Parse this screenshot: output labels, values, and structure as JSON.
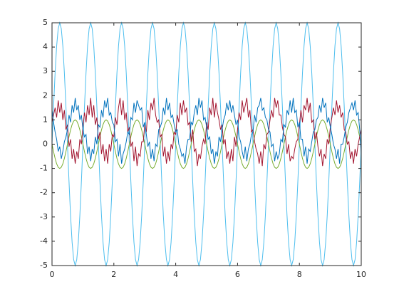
{
  "chart_data": {
    "type": "line",
    "x": [
      0,
      0.05,
      0.1,
      0.15,
      0.2,
      0.25,
      0.3,
      0.35,
      0.4,
      0.45,
      0.5,
      0.55,
      0.6,
      0.65,
      0.7,
      0.75,
      0.8,
      0.85,
      0.9,
      0.95,
      1,
      1.05,
      1.1,
      1.15,
      1.2,
      1.25,
      1.3,
      1.35,
      1.4,
      1.45,
      1.5,
      1.55,
      1.6,
      1.65,
      1.7,
      1.75,
      1.8,
      1.85,
      1.9,
      1.95,
      2,
      2.05,
      2.1,
      2.15,
      2.2,
      2.25,
      2.3,
      2.35,
      2.4,
      2.45,
      2.5,
      2.55,
      2.6,
      2.65,
      2.7,
      2.75,
      2.8,
      2.85,
      2.9,
      2.95,
      3,
      3.05,
      3.1,
      3.15,
      3.2,
      3.25,
      3.3,
      3.35,
      3.4,
      3.45,
      3.5,
      3.55,
      3.6,
      3.65,
      3.7,
      3.75,
      3.8,
      3.85,
      3.9,
      3.95,
      4,
      4.05,
      4.1,
      4.15,
      4.2,
      4.25,
      4.3,
      4.35,
      4.4,
      4.45,
      4.5,
      4.55,
      4.6,
      4.65,
      4.7,
      4.75,
      4.8,
      4.85,
      4.9,
      4.95,
      5,
      5.05,
      5.1,
      5.15,
      5.2,
      5.25,
      5.3,
      5.35,
      5.4,
      5.45,
      5.5,
      5.55,
      5.6,
      5.65,
      5.7,
      5.75,
      5.8,
      5.85,
      5.9,
      5.95,
      6,
      6.05,
      6.1,
      6.15,
      6.2,
      6.25,
      6.3,
      6.35,
      6.4,
      6.45,
      6.5,
      6.55,
      6.6,
      6.65,
      6.7,
      6.75,
      6.8,
      6.85,
      6.9,
      6.95,
      7,
      7.05,
      7.1,
      7.15,
      7.2,
      7.25,
      7.3,
      7.35,
      7.4,
      7.45,
      7.5,
      7.55,
      7.6,
      7.65,
      7.7,
      7.75,
      7.8,
      7.85,
      7.9,
      7.95,
      8,
      8.05,
      8.1,
      8.15,
      8.2,
      8.25,
      8.3,
      8.35,
      8.4,
      8.45,
      8.5,
      8.55,
      8.6,
      8.65,
      8.7,
      8.75,
      8.8,
      8.85,
      8.9,
      8.95,
      9,
      9.05,
      9.1,
      9.15,
      9.2,
      9.25,
      9.3,
      9.35,
      9.4,
      9.45,
      9.5,
      9.55,
      9.6,
      9.65,
      9.7,
      9.75,
      9.8,
      9.85,
      9.9,
      9.95,
      10
    ],
    "series": [
      {
        "color": "#4DBEEE",
        "values": [
          0,
          1.545,
          2.939,
          4.045,
          4.755,
          5,
          4.755,
          4.045,
          2.939,
          1.545,
          0,
          -1.545,
          -2.939,
          -4.045,
          -4.755,
          -5,
          -4.755,
          -4.045,
          -2.939,
          -1.545,
          0,
          1.545,
          2.939,
          4.045,
          4.755,
          5,
          4.755,
          4.045,
          2.939,
          1.545,
          0,
          -1.545,
          -2.939,
          -4.045,
          -4.755,
          -5,
          -4.755,
          -4.045,
          -2.939,
          -1.545,
          0,
          1.545,
          2.939,
          4.045,
          4.755,
          5,
          4.755,
          4.045,
          2.939,
          1.545,
          0,
          -1.545,
          -2.939,
          -4.045,
          -4.755,
          -5,
          -4.755,
          -4.045,
          -2.939,
          -1.545,
          0,
          1.545,
          2.939,
          4.045,
          4.755,
          5,
          4.755,
          4.045,
          2.939,
          1.545,
          0,
          -1.545,
          -2.939,
          -4.045,
          -4.755,
          -5,
          -4.755,
          -4.045,
          -2.939,
          -1.545,
          0,
          1.545,
          2.939,
          4.045,
          4.755,
          5,
          4.755,
          4.045,
          2.939,
          1.545,
          0,
          -1.545,
          -2.939,
          -4.045,
          -4.755,
          -5,
          -4.755,
          -4.045,
          -2.939,
          -1.545,
          0,
          1.545,
          2.939,
          4.045,
          4.755,
          5,
          4.755,
          4.045,
          2.939,
          1.545,
          0,
          -1.545,
          -2.939,
          -4.045,
          -4.755,
          -5,
          -4.755,
          -4.045,
          -2.939,
          -1.545,
          0,
          1.545,
          2.939,
          4.045,
          4.755,
          5,
          4.755,
          4.045,
          2.939,
          1.545,
          0,
          -1.545,
          -2.939,
          -4.045,
          -4.755,
          -5,
          -4.755,
          -4.045,
          -2.939,
          -1.545,
          0,
          1.545,
          2.939,
          4.045,
          4.755,
          5,
          4.755,
          4.045,
          2.939,
          1.545,
          0,
          -1.545,
          -2.939,
          -4.045,
          -4.755,
          -5,
          -4.755,
          -4.045,
          -2.939,
          -1.545,
          0,
          1.545,
          2.939,
          4.045,
          4.755,
          5,
          4.755,
          4.045,
          2.939,
          1.545,
          0,
          -1.545,
          -2.939,
          -4.045,
          -4.755,
          -5,
          -4.755,
          -4.045,
          -2.939,
          -1.545,
          0,
          1.545,
          2.939,
          4.045,
          4.755,
          5,
          4.755,
          4.045,
          2.939,
          1.545,
          0,
          -1.545,
          -2.939,
          -4.045,
          -4.755,
          -5,
          -4.755,
          -4.045,
          -2.939,
          -1.545,
          0
        ]
      },
      {
        "color": "#77AC30",
        "values": [
          0,
          -0.309,
          -0.588,
          -0.809,
          -0.951,
          -1,
          -0.951,
          -0.809,
          -0.588,
          -0.309,
          0,
          0.309,
          0.588,
          0.809,
          0.951,
          1,
          0.951,
          0.809,
          0.588,
          0.309,
          0,
          -0.309,
          -0.588,
          -0.809,
          -0.951,
          -1,
          -0.951,
          -0.809,
          -0.588,
          -0.309,
          0,
          0.309,
          0.588,
          0.809,
          0.951,
          1,
          0.951,
          0.809,
          0.588,
          0.309,
          0,
          -0.309,
          -0.588,
          -0.809,
          -0.951,
          -1,
          -0.951,
          -0.809,
          -0.588,
          -0.309,
          0,
          0.309,
          0.588,
          0.809,
          0.951,
          1,
          0.951,
          0.809,
          0.588,
          0.309,
          0,
          -0.309,
          -0.588,
          -0.809,
          -0.951,
          -1,
          -0.951,
          -0.809,
          -0.588,
          -0.309,
          0,
          0.309,
          0.588,
          0.809,
          0.951,
          1,
          0.951,
          0.809,
          0.588,
          0.309,
          0,
          -0.309,
          -0.588,
          -0.809,
          -0.951,
          -1,
          -0.951,
          -0.809,
          -0.588,
          -0.309,
          0,
          0.309,
          0.588,
          0.809,
          0.951,
          1,
          0.951,
          0.809,
          0.588,
          0.309,
          0,
          -0.309,
          -0.588,
          -0.809,
          -0.951,
          -1,
          -0.951,
          -0.809,
          -0.588,
          -0.309,
          0,
          0.309,
          0.588,
          0.809,
          0.951,
          1,
          0.951,
          0.809,
          0.588,
          0.309,
          0,
          -0.309,
          -0.588,
          -0.809,
          -0.951,
          -1,
          -0.951,
          -0.809,
          -0.588,
          -0.309,
          0,
          0.309,
          0.588,
          0.809,
          0.951,
          1,
          0.951,
          0.809,
          0.588,
          0.309,
          0,
          -0.309,
          -0.588,
          -0.809,
          -0.951,
          -1,
          -0.951,
          -0.809,
          -0.588,
          -0.309,
          0,
          0.309,
          0.588,
          0.809,
          0.951,
          1,
          0.951,
          0.809,
          0.588,
          0.309,
          0,
          -0.309,
          -0.588,
          -0.809,
          -0.951,
          -1,
          -0.951,
          -0.809,
          -0.588,
          -0.309,
          0,
          0.309,
          0.588,
          0.809,
          0.951,
          1,
          0.951,
          0.809,
          0.588,
          0.309,
          0,
          -0.309,
          -0.588,
          -0.809,
          -0.951,
          -1,
          -0.951,
          -0.809,
          -0.588,
          -0.309,
          0,
          0.309,
          0.588,
          0.809,
          0.951,
          1,
          0.951,
          0.809,
          0.588,
          0.309,
          0
        ]
      },
      {
        "color": "#A2142F",
        "values": [
          0.9,
          1.2,
          1.5,
          1.1,
          1.8,
          1.3,
          1.7,
          1.0,
          1.4,
          0.6,
          0.8,
          -0.1,
          0.2,
          -0.6,
          -0.2,
          -0.8,
          -0.3,
          -0.6,
          0.2,
          0.0,
          0.7,
          1.3,
          0.9,
          1.6,
          1.2,
          1.9,
          1.1,
          1.6,
          0.8,
          1.1,
          0.2,
          0.5,
          -0.4,
          0.0,
          -0.7,
          -0.2,
          -0.8,
          0.0,
          -0.3,
          0.4,
          0.3,
          1.1,
          0.8,
          1.5,
          1.9,
          1.2,
          1.8,
          1.0,
          1.3,
          0.5,
          0.7,
          -0.1,
          0.1,
          -0.7,
          -0.1,
          -0.9,
          -0.4,
          -0.5,
          0.1,
          0.1,
          0.8,
          0.5,
          1.4,
          1.0,
          1.7,
          1.4,
          1.9,
          1.2,
          0.9,
          1.0,
          0.3,
          0.4,
          -0.5,
          -0.1,
          -0.8,
          -0.3,
          -0.7,
          0.0,
          -0.2,
          0.5,
          0.4,
          1.2,
          0.9,
          1.7,
          1.2,
          1.8,
          1.3,
          1.5,
          0.8,
          0.9,
          0.1,
          0.6,
          -0.3,
          -0.2,
          -0.9,
          -0.4,
          -0.6,
          -0.1,
          0.2,
          0.0,
          0.9,
          0.6,
          1.5,
          1.2,
          1.9,
          1.1,
          1.7,
          1.3,
          1.0,
          0.6,
          0.8,
          0.0,
          0.2,
          -0.6,
          -0.3,
          -0.8,
          -0.2,
          -0.7,
          0.3,
          -0.1,
          0.6,
          1.3,
          1.0,
          1.8,
          1.3,
          1.6,
          1.9,
          1.1,
          1.4,
          0.5,
          0.6,
          0.1,
          -0.2,
          -0.4,
          -0.8,
          -0.3,
          -0.9,
          0.0,
          -0.2,
          0.4,
          0.5,
          1.0,
          1.4,
          1.1,
          1.9,
          1.5,
          1.8,
          1.2,
          1.2,
          0.7,
          0.4,
          0.3,
          -0.4,
          0.0,
          -0.7,
          -0.5,
          -0.6,
          -0.2,
          0.1,
          0.2,
          0.8,
          1.4,
          0.9,
          1.6,
          1.4,
          1.9,
          1.3,
          1.7,
          0.9,
          1.0,
          0.2,
          0.5,
          -0.1,
          -0.5,
          -0.2,
          -0.9,
          -0.4,
          -0.6,
          0.2,
          0.0,
          0.7,
          1.1,
          1.5,
          1.2,
          1.8,
          1.3,
          1.6,
          1.1,
          1.3,
          0.6,
          0.5,
          0.0,
          0.1,
          -0.6,
          -0.3,
          -0.8,
          -0.2,
          -0.5,
          0.0,
          0.3,
          0.6
        ]
      },
      {
        "color": "#0072BD",
        "values": [
          1.4,
          0.9,
          0.5,
          0.2,
          -0.3,
          -0.1,
          -0.6,
          -0.3,
          0.1,
          0.3,
          0.6,
          1.2,
          0.9,
          1.6,
          1.3,
          1.9,
          1.4,
          1.6,
          1.0,
          1.2,
          0.6,
          0.3,
          0.4,
          -0.4,
          -0.1,
          -0.7,
          -0.2,
          -0.4,
          0.3,
          0.0,
          0.8,
          0.7,
          1.4,
          1.1,
          1.8,
          1.5,
          1.9,
          1.2,
          1.3,
          0.9,
          0.8,
          0.1,
          0.2,
          -0.5,
          0.0,
          -0.8,
          -0.4,
          -0.2,
          0.1,
          0.5,
          0.4,
          1.1,
          1.0,
          1.7,
          1.3,
          1.8,
          1.6,
          1.4,
          1.5,
          0.7,
          0.9,
          0.4,
          -0.1,
          0.1,
          -0.6,
          -0.2,
          -0.7,
          0.0,
          -0.1,
          0.6,
          0.7,
          0.9,
          1.5,
          1.2,
          1.9,
          1.4,
          1.7,
          1.1,
          1.2,
          0.8,
          0.5,
          0.6,
          0.0,
          -0.2,
          -0.5,
          -0.4,
          -0.8,
          -0.1,
          0.2,
          0.2,
          0.9,
          0.8,
          1.3,
          1.6,
          1.2,
          1.9,
          1.5,
          1.8,
          1.0,
          1.1,
          0.7,
          0.2,
          0.3,
          -0.4,
          -0.2,
          -0.8,
          -0.3,
          -0.5,
          0.3,
          0.1,
          0.6,
          1.0,
          1.2,
          1.7,
          1.4,
          1.8,
          1.3,
          1.6,
          1.2,
          0.8,
          1.0,
          0.3,
          0.1,
          -0.3,
          -0.6,
          -0.1,
          -0.7,
          -0.2,
          0.0,
          0.4,
          0.5,
          1.2,
          0.9,
          1.5,
          1.6,
          1.9,
          1.4,
          1.5,
          1.1,
          1.0,
          0.6,
          0.5,
          -0.1,
          0.0,
          -0.7,
          -0.3,
          -0.6,
          -0.4,
          0.2,
          0.1,
          0.8,
          0.7,
          1.4,
          1.2,
          1.8,
          1.3,
          1.9,
          1.3,
          1.4,
          0.7,
          0.9,
          0.2,
          0.2,
          -0.5,
          -0.1,
          -0.8,
          -0.2,
          -0.3,
          0.1,
          0.5,
          0.6,
          1.0,
          1.1,
          1.6,
          1.3,
          1.9,
          1.5,
          1.7,
          0.9,
          1.1,
          0.7,
          0.4,
          0.0,
          -0.2,
          -0.6,
          -0.2,
          -0.8,
          0.0,
          0.0,
          0.3,
          0.7,
          0.9,
          1.3,
          1.5,
          1.7,
          1.4,
          1.8,
          1.2,
          1.3,
          0.6,
          -0.4
        ]
      }
    ],
    "xlim": [
      0,
      10
    ],
    "xticks": [
      0,
      2,
      4,
      6,
      8,
      10
    ],
    "ylim": [
      -5,
      5
    ],
    "yticks": [
      -5,
      -4,
      -3,
      -2,
      -1,
      0,
      1,
      2,
      3,
      4,
      5
    ]
  }
}
